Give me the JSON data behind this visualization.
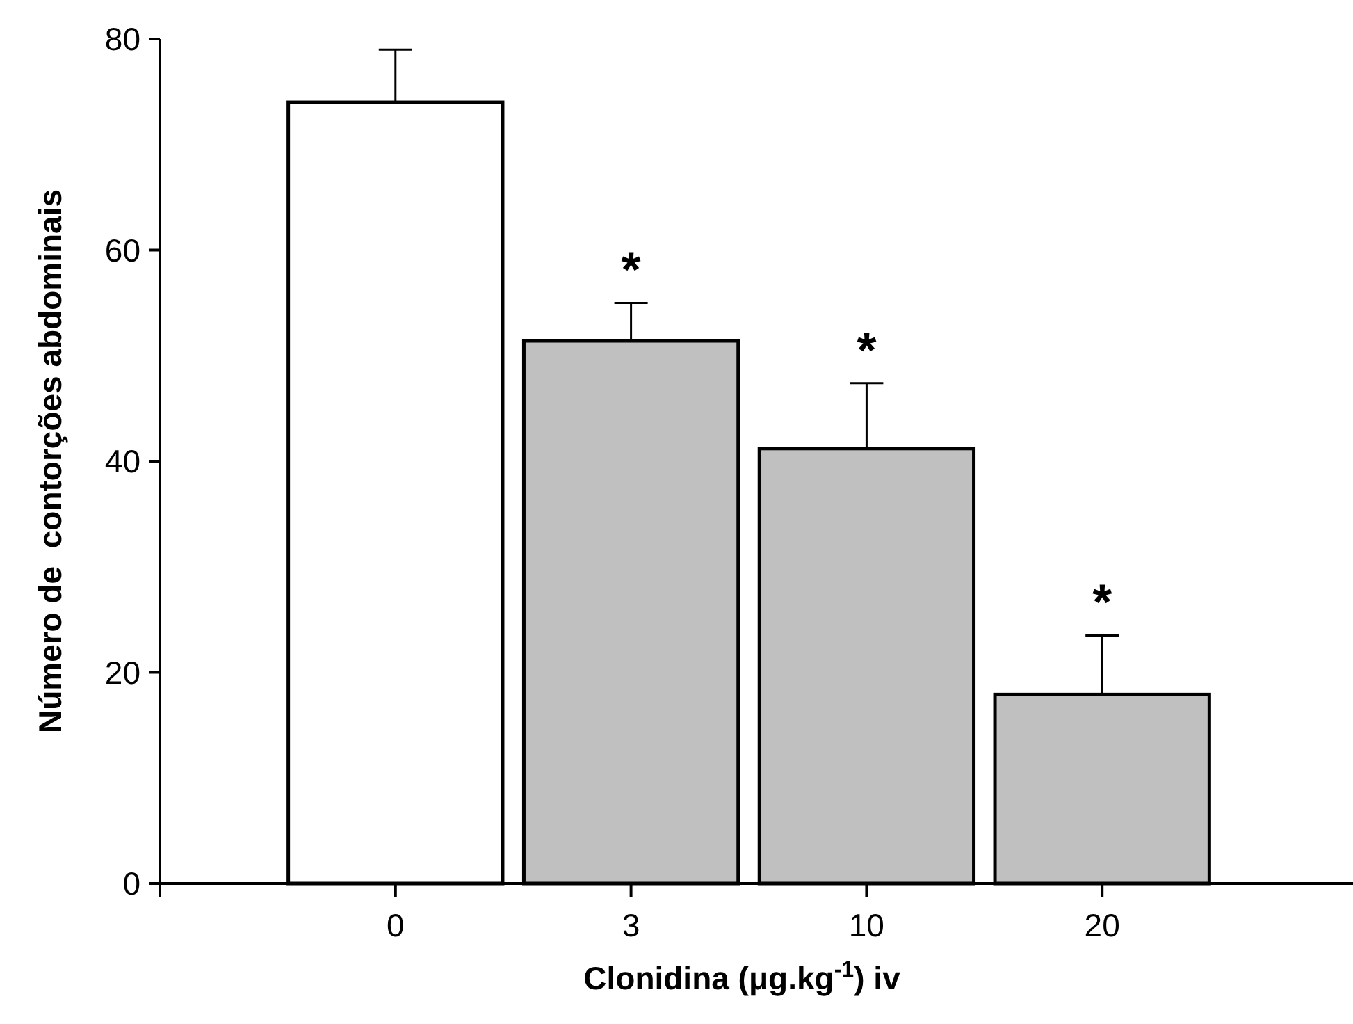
{
  "chart_data": {
    "type": "bar",
    "xlabel": "Clonidina (μg.kg$^{-1}$) iv",
    "ylabel": "Número de  contorções abdominais",
    "categories": [
      "0",
      "3",
      "10",
      "20"
    ],
    "values": [
      74,
      51.4,
      41.2,
      17.9
    ],
    "colors": [
      "#ffffff",
      "#c0c0c0",
      "#c0c0c0",
      "#c0c0c0"
    ],
    "errors": [
      [
        74,
        79
      ],
      [
        51.4,
        55
      ],
      [
        41.2,
        47.4
      ],
      [
        17.9,
        23.5
      ]
    ],
    "ylim": [
      0,
      80
    ],
    "yticks": [
      0,
      20,
      40,
      60,
      80
    ],
    "annotations": [
      {
        "text": "*",
        "x": "3",
        "y": 55
      },
      {
        "text": "*",
        "x": "10",
        "y": 47.4
      },
      {
        "text": "*",
        "x": "20",
        "y": 23.5
      }
    ],
    "grid": false
  }
}
